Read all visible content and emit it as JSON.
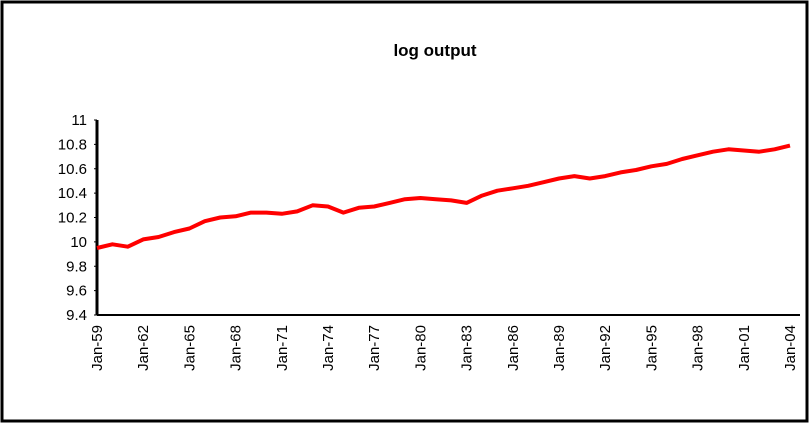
{
  "chart_data": {
    "type": "line",
    "title": "log output",
    "categories": [
      "Jan-59",
      null,
      null,
      "Jan-62",
      null,
      null,
      "Jan-65",
      null,
      null,
      "Jan-68",
      null,
      null,
      "Jan-71",
      null,
      null,
      "Jan-74",
      null,
      null,
      "Jan-77",
      null,
      null,
      "Jan-80",
      null,
      null,
      "Jan-83",
      null,
      null,
      "Jan-86",
      null,
      null,
      "Jan-89",
      null,
      null,
      "Jan-92",
      null,
      null,
      "Jan-95",
      null,
      null,
      "Jan-98",
      null,
      null,
      "Jan-01",
      null,
      null,
      "Jan-04"
    ],
    "values": [
      9.95,
      9.98,
      9.96,
      10.02,
      10.04,
      10.08,
      10.11,
      10.17,
      10.2,
      10.21,
      10.24,
      10.24,
      10.23,
      10.25,
      10.3,
      10.29,
      10.24,
      10.28,
      10.29,
      10.32,
      10.35,
      10.36,
      10.35,
      10.34,
      10.32,
      10.38,
      10.42,
      10.44,
      10.46,
      10.49,
      10.52,
      10.54,
      10.52,
      10.54,
      10.57,
      10.59,
      10.62,
      10.64,
      10.68,
      10.71,
      10.74,
      10.76,
      10.75,
      10.74,
      10.76,
      10.79
    ],
    "color": "#ff0000",
    "ylim": [
      9.4,
      11
    ],
    "yticks": [
      9.4,
      9.6,
      9.8,
      10,
      10.2,
      10.4,
      10.6,
      10.8,
      11
    ],
    "grid": false
  }
}
